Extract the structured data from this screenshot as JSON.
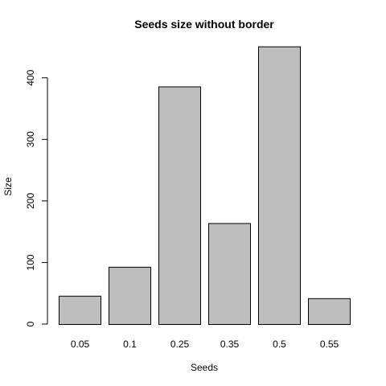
{
  "chart_data": {
    "type": "bar",
    "title": "Seeds size without border",
    "xlabel": "Seeds",
    "ylabel": "Size",
    "categories": [
      "0.05",
      "0.1",
      "0.25",
      "0.35",
      "0.5",
      "0.55"
    ],
    "values": [
      46,
      93,
      386,
      164,
      451,
      42
    ],
    "ylim": [
      0,
      460
    ],
    "yticks": [
      0,
      100,
      200,
      300,
      400
    ],
    "bar_color": "#bebebe",
    "grid": false,
    "legend": "none"
  }
}
